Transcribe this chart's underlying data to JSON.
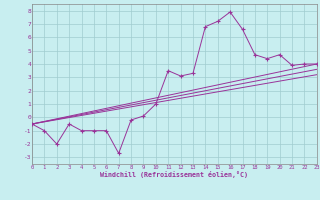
{
  "xlabel": "Windchill (Refroidissement éolien,°C)",
  "xlim": [
    0,
    23
  ],
  "ylim": [
    -3.5,
    8.5
  ],
  "xticks": [
    0,
    1,
    2,
    3,
    4,
    5,
    6,
    7,
    8,
    9,
    10,
    11,
    12,
    13,
    14,
    15,
    16,
    17,
    18,
    19,
    20,
    21,
    22,
    23
  ],
  "yticks": [
    -3,
    -2,
    -1,
    0,
    1,
    2,
    3,
    4,
    5,
    6,
    7,
    8
  ],
  "bg_color": "#c8eef0",
  "grid_color": "#a0ccd0",
  "line_color": "#993399",
  "series_main_x": [
    0,
    1,
    2,
    3,
    4,
    5,
    6,
    7,
    8,
    9,
    10,
    11,
    12,
    13,
    14,
    15,
    16,
    17,
    18,
    19,
    20,
    21,
    22,
    23
  ],
  "series_main_y": [
    -0.5,
    -1.0,
    -2.0,
    -0.5,
    -1.0,
    -1.0,
    -1.0,
    -2.7,
    -0.2,
    0.1,
    1.0,
    3.5,
    3.1,
    3.3,
    6.8,
    7.2,
    7.9,
    6.6,
    4.7,
    4.4,
    4.7,
    3.9,
    4.0,
    4.0
  ],
  "line1_y": [
    -0.5,
    4.0
  ],
  "line2_y": [
    -0.5,
    3.6
  ],
  "line3_y": [
    -0.5,
    3.2
  ]
}
